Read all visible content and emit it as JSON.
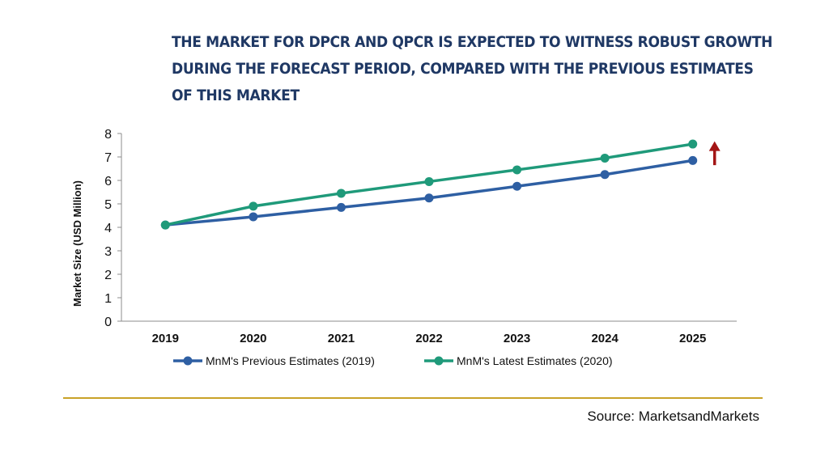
{
  "title_lines": [
    "THE MARKET FOR DPCR AND QPCR IS EXPECTED TO WITNESS ROBUST GROWTH",
    "DURING THE FORECAST PERIOD, COMPARED WITH THE PREVIOUS ESTIMATES",
    "OF THIS MARKET"
  ],
  "source": "Source: MarketsandMarkets",
  "colors": {
    "title": "#1f3864",
    "previous": "#2e5fa3",
    "latest": "#1f9a7a",
    "arrow": "#a31515",
    "rule": "#c9a227"
  },
  "chart_data": {
    "type": "line",
    "x": [
      "2019",
      "2020",
      "2021",
      "2022",
      "2023",
      "2024",
      "2025"
    ],
    "ylabel": "Market Size (USD Million)",
    "ylim": [
      0,
      8
    ],
    "yticks": [
      0,
      1,
      2,
      3,
      4,
      5,
      6,
      7,
      8
    ],
    "grid": false,
    "legend_position": "bottom",
    "series": [
      {
        "name": "MnM's Previous Estimates (2019)",
        "values": [
          4.1,
          4.45,
          4.85,
          5.25,
          5.75,
          6.25,
          6.85
        ],
        "color": "#2e5fa3"
      },
      {
        "name": "MnM's Latest Estimates (2020)",
        "values": [
          4.1,
          4.9,
          5.45,
          5.95,
          6.45,
          6.95,
          7.55
        ],
        "color": "#1f9a7a"
      }
    ],
    "annotation": "up-arrow"
  }
}
